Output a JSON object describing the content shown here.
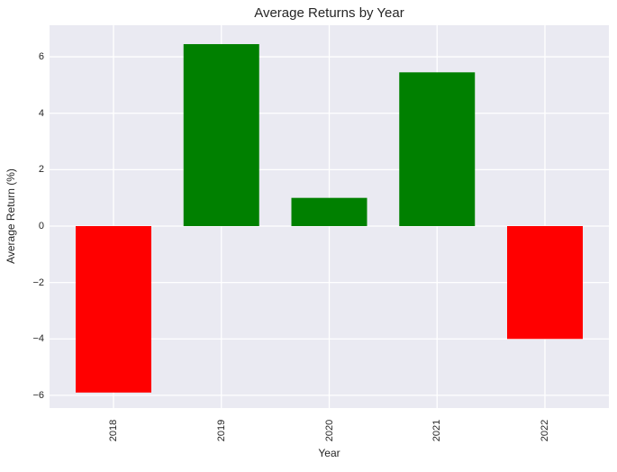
{
  "chart_data": {
    "type": "bar",
    "title": "Average Returns by Year",
    "xlabel": "Year",
    "ylabel": "Average Return (%)",
    "categories": [
      "2018",
      "2019",
      "2020",
      "2021",
      "2022"
    ],
    "values": [
      -5.9,
      6.45,
      1.0,
      5.45,
      -4.0
    ],
    "bar_colors": [
      "#ff0000",
      "#008000",
      "#008000",
      "#008000",
      "#ff0000"
    ],
    "positive_color": "#008000",
    "negative_color": "#ff0000",
    "yticks": [
      {
        "value": -6,
        "label": "−6"
      },
      {
        "value": -4,
        "label": "−4"
      },
      {
        "value": -2,
        "label": "−2"
      },
      {
        "value": 0,
        "label": "0"
      },
      {
        "value": 2,
        "label": "2"
      },
      {
        "value": 4,
        "label": "4"
      },
      {
        "value": 6,
        "label": "6"
      }
    ],
    "ylim": [
      -6.45,
      7.12
    ],
    "xtick_rotation_deg": 90,
    "grid": true,
    "legend": false,
    "colors": {
      "figure_background": "#ffffff",
      "plot_background": "#eaeaf2",
      "gridline": "#ffffff",
      "text": "#262626"
    }
  }
}
